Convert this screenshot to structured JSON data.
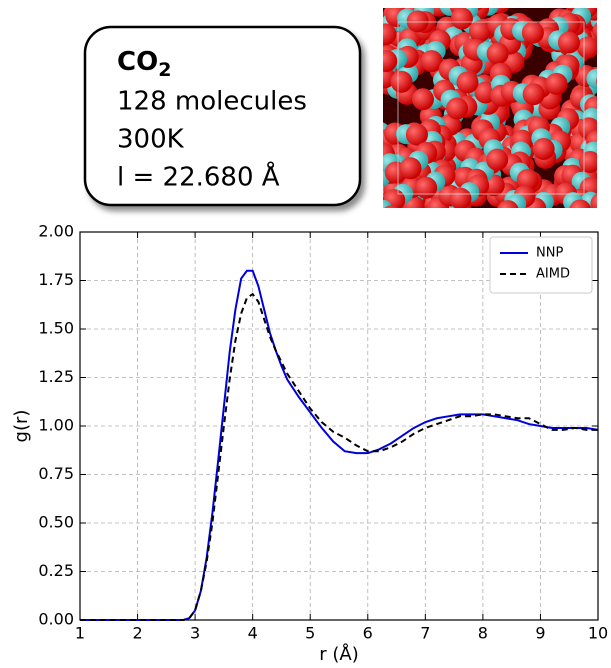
{
  "info": {
    "formula": "CO",
    "formula_subscript": "2",
    "lines": [
      "128 molecules",
      "300K",
      "l = 22.680 Å"
    ]
  },
  "chart_data": {
    "type": "line",
    "x_label": "r (Å)",
    "y_label": "g(r)",
    "x": [
      1,
      1.5,
      2,
      2.5,
      2.8,
      2.9,
      3.0,
      3.1,
      3.2,
      3.3,
      3.4,
      3.5,
      3.6,
      3.7,
      3.8,
      3.9,
      4.0,
      4.1,
      4.2,
      4.3,
      4.4,
      4.5,
      4.6,
      4.8,
      5.0,
      5.2,
      5.4,
      5.6,
      5.8,
      6.0,
      6.2,
      6.4,
      6.6,
      6.8,
      7.0,
      7.2,
      7.4,
      7.6,
      7.8,
      8.0,
      8.2,
      8.4,
      8.6,
      8.8,
      9.0,
      9.2,
      9.4,
      9.6,
      9.8,
      10
    ],
    "series": [
      {
        "name": "NNP",
        "color": "#0000dd",
        "style": "solid",
        "values": [
          0,
          0,
          0,
          0,
          0,
          0.01,
          0.05,
          0.15,
          0.32,
          0.55,
          0.82,
          1.1,
          1.38,
          1.6,
          1.76,
          1.8,
          1.8,
          1.72,
          1.6,
          1.48,
          1.39,
          1.31,
          1.24,
          1.15,
          1.07,
          0.99,
          0.92,
          0.87,
          0.86,
          0.86,
          0.88,
          0.91,
          0.95,
          0.99,
          1.02,
          1.04,
          1.05,
          1.06,
          1.06,
          1.06,
          1.05,
          1.04,
          1.03,
          1.01,
          1.0,
          0.99,
          0.99,
          0.99,
          0.99,
          0.98
        ]
      },
      {
        "name": "AIMD",
        "color": "#000000",
        "style": "dashed",
        "values": [
          0,
          0,
          0,
          0,
          0,
          0.01,
          0.05,
          0.15,
          0.3,
          0.5,
          0.75,
          1.0,
          1.24,
          1.44,
          1.58,
          1.66,
          1.68,
          1.64,
          1.55,
          1.46,
          1.39,
          1.33,
          1.27,
          1.18,
          1.09,
          1.02,
          0.97,
          0.94,
          0.9,
          0.87,
          0.87,
          0.89,
          0.92,
          0.96,
          0.99,
          1.01,
          1.03,
          1.05,
          1.05,
          1.06,
          1.06,
          1.05,
          1.04,
          1.04,
          1.01,
          0.98,
          0.98,
          0.99,
          0.98,
          0.98
        ]
      }
    ],
    "xlim": [
      1,
      10
    ],
    "xticks": [
      1,
      2,
      3,
      4,
      5,
      6,
      7,
      8,
      9,
      10
    ],
    "ylim": [
      0,
      2
    ],
    "yticks": [
      {
        "value": 0,
        "label": "0.00"
      },
      {
        "value": 0.25,
        "label": "0.25"
      },
      {
        "value": 0.5,
        "label": "0.50"
      },
      {
        "value": 0.75,
        "label": "0.75"
      },
      {
        "value": 1,
        "label": "1.00"
      },
      {
        "value": 1.25,
        "label": "1.25"
      },
      {
        "value": 1.5,
        "label": "1.50"
      },
      {
        "value": 1.75,
        "label": "1.75"
      },
      {
        "value": 2,
        "label": "2.00"
      }
    ],
    "grid": true,
    "legend": "upper right"
  }
}
